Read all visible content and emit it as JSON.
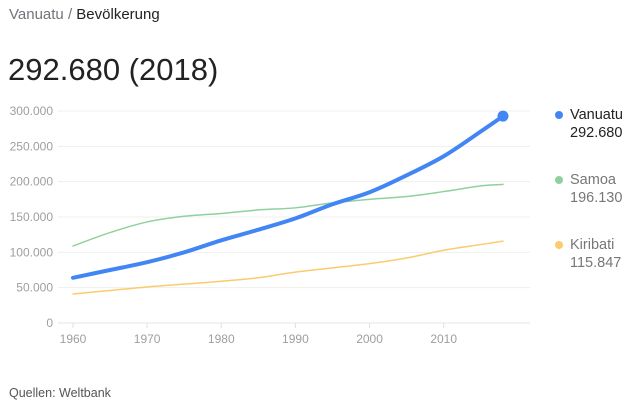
{
  "breadcrumb": {
    "parent": "Vanuatu",
    "separator": "/",
    "current": "Bevölkerung"
  },
  "headline": "292.680 (2018)",
  "source": "Quellen: Weltbank",
  "chart_data": {
    "type": "line",
    "x": [
      1960,
      1965,
      1970,
      1975,
      1980,
      1985,
      1990,
      1995,
      2000,
      2005,
      2010,
      2015,
      2018
    ],
    "xticks": [
      "1960",
      "1970",
      "1980",
      "1990",
      "2000",
      "2010"
    ],
    "yticks": [
      "0",
      "50.000",
      "100.000",
      "150.000",
      "200.000",
      "250.000",
      "300.000"
    ],
    "xlim": [
      1960,
      2018
    ],
    "ylim": [
      0,
      300000
    ],
    "grid": true,
    "legend_placement": "right",
    "series": [
      {
        "name": "Vanuatu",
        "latest": "292.680",
        "color": "#4285f4",
        "values": [
          64000,
          75000,
          86000,
          100000,
          117000,
          132000,
          148000,
          168000,
          185000,
          209000,
          236000,
          271000,
          292680
        ]
      },
      {
        "name": "Samoa",
        "latest": "196.130",
        "color": "#8fd19e",
        "values": [
          109000,
          128000,
          143000,
          151000,
          155000,
          160000,
          163000,
          170000,
          175000,
          179000,
          186000,
          194000,
          196130
        ]
      },
      {
        "name": "Kiribati",
        "latest": "115.847",
        "color": "#fbcb6e",
        "values": [
          41000,
          46000,
          51000,
          55000,
          59000,
          64000,
          72000,
          78000,
          84000,
          92000,
          103000,
          111000,
          115847
        ]
      }
    ]
  }
}
